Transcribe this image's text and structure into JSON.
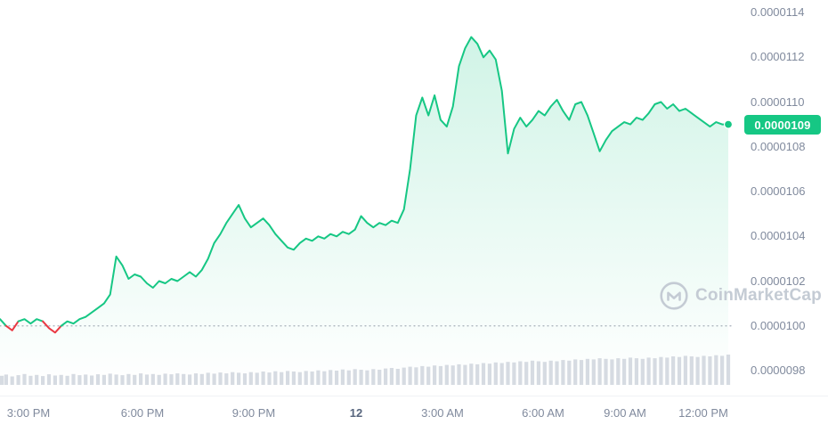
{
  "watermark": {
    "text": "CoinMarketCap"
  },
  "chart_data": {
    "type": "area",
    "description": "24-hour cryptocurrency price chart with volume bars",
    "value_scale": "price values are in units of 1e-7 USD (e.g. 109 = 0.0000109)",
    "open_price": 100,
    "open_price_label": "0.0000100",
    "current_price": 109,
    "current_price_label": "0.0000109",
    "y_axis": {
      "tick_values": [
        114,
        112,
        110,
        108,
        106,
        104,
        102,
        100,
        98
      ],
      "tick_labels": [
        "0.0000114",
        "0.0000112",
        "0.0000110",
        "0.0000108",
        "0.0000106",
        "0.0000104",
        "0.0000102",
        "0.0000100",
        "0.0000098"
      ]
    },
    "x_axis": {
      "ticks": [
        {
          "label": "3:00 PM",
          "pos": 0.039
        },
        {
          "label": "6:00 PM",
          "pos": 0.195
        },
        {
          "label": "9:00 PM",
          "pos": 0.347
        },
        {
          "label": "12",
          "pos": 0.487,
          "emphasis": true
        },
        {
          "label": "3:00 AM",
          "pos": 0.605
        },
        {
          "label": "6:00 AM",
          "pos": 0.742
        },
        {
          "label": "9:00 AM",
          "pos": 0.854
        },
        {
          "label": "12:00 PM",
          "pos": 0.961
        }
      ]
    },
    "series": [
      {
        "name": "price",
        "values": [
          100.3,
          100.0,
          99.8,
          100.2,
          100.3,
          100.1,
          100.3,
          100.2,
          99.9,
          99.7,
          100.0,
          100.2,
          100.1,
          100.3,
          100.4,
          100.6,
          100.8,
          101.0,
          101.4,
          103.1,
          102.7,
          102.1,
          102.3,
          102.2,
          101.9,
          101.7,
          102.0,
          101.9,
          102.1,
          102.0,
          102.2,
          102.4,
          102.2,
          102.5,
          103.0,
          103.7,
          104.1,
          104.6,
          105.0,
          105.4,
          104.8,
          104.4,
          104.6,
          104.8,
          104.5,
          104.1,
          103.8,
          103.5,
          103.4,
          103.7,
          103.9,
          103.8,
          104.0,
          103.9,
          104.1,
          104.0,
          104.2,
          104.1,
          104.3,
          104.9,
          104.6,
          104.4,
          104.6,
          104.5,
          104.7,
          104.6,
          105.2,
          107.0,
          109.4,
          110.2,
          109.4,
          110.3,
          109.2,
          108.9,
          109.8,
          111.6,
          112.4,
          112.9,
          112.6,
          112.0,
          112.3,
          111.9,
          110.5,
          107.7,
          108.8,
          109.3,
          108.9,
          109.2,
          109.6,
          109.4,
          109.8,
          110.1,
          109.6,
          109.2,
          109.9,
          110.0,
          109.4,
          108.6,
          107.8,
          108.3,
          108.7,
          108.9,
          109.1,
          109.0,
          109.3,
          109.2,
          109.5,
          109.9,
          110.0,
          109.7,
          109.9,
          109.6,
          109.7,
          109.5,
          109.3,
          109.1,
          108.9,
          109.1,
          109.0,
          109.0
        ]
      }
    ],
    "volume_relative": [
      0.3,
      0.34,
      0.28,
      0.32,
      0.36,
      0.3,
      0.33,
      0.29,
      0.35,
      0.31,
      0.33,
      0.3,
      0.36,
      0.32,
      0.34,
      0.31,
      0.35,
      0.33,
      0.37,
      0.34,
      0.32,
      0.36,
      0.33,
      0.38,
      0.34,
      0.36,
      0.33,
      0.37,
      0.35,
      0.38,
      0.36,
      0.34,
      0.38,
      0.36,
      0.4,
      0.37,
      0.41,
      0.38,
      0.42,
      0.4,
      0.38,
      0.42,
      0.4,
      0.44,
      0.41,
      0.45,
      0.42,
      0.46,
      0.44,
      0.42,
      0.46,
      0.44,
      0.48,
      0.45,
      0.49,
      0.47,
      0.51,
      0.48,
      0.52,
      0.5,
      0.48,
      0.52,
      0.5,
      0.54,
      0.56,
      0.53,
      0.57,
      0.6,
      0.58,
      0.62,
      0.6,
      0.64,
      0.62,
      0.66,
      0.64,
      0.68,
      0.66,
      0.7,
      0.68,
      0.72,
      0.7,
      0.74,
      0.72,
      0.76,
      0.74,
      0.78,
      0.76,
      0.8,
      0.78,
      0.76,
      0.8,
      0.78,
      0.82,
      0.8,
      0.84,
      0.82,
      0.86,
      0.84,
      0.88,
      0.86,
      0.84,
      0.88,
      0.86,
      0.9,
      0.88,
      0.86,
      0.9,
      0.88,
      0.92,
      0.9,
      0.94,
      0.92,
      0.96,
      0.94,
      0.92,
      0.96,
      0.94,
      0.98,
      0.96,
      1.0
    ],
    "colors": {
      "up": "#16c784",
      "down": "#ea3943",
      "volume": "#d6dbe2",
      "axis_text": "#808a9d",
      "baseline_dots": "#9aa4b0",
      "badge_text": "#ffffff",
      "watermark": "#c4cbd4"
    }
  }
}
